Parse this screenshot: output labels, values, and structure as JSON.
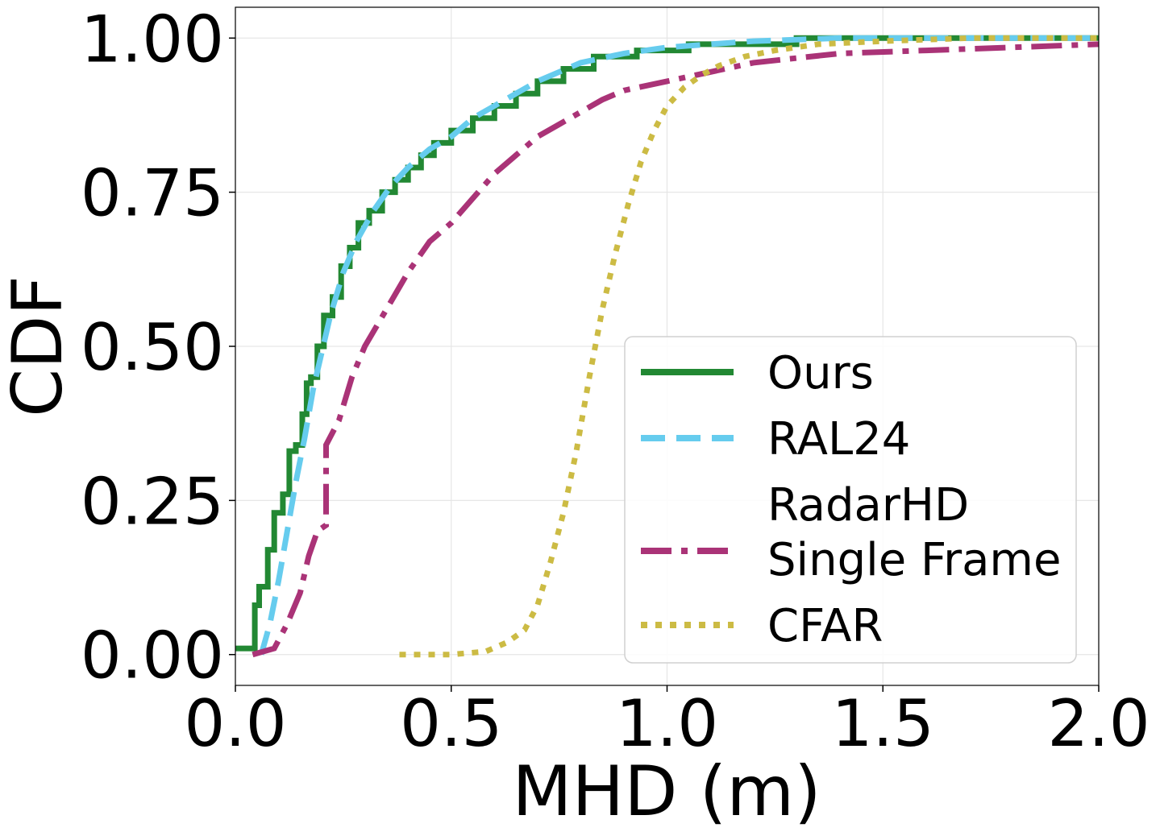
{
  "chart_data": {
    "type": "line",
    "title": "",
    "xlabel": "MHD (m)",
    "ylabel": "CDF",
    "xlim": [
      0.0,
      2.0
    ],
    "ylim": [
      -0.05,
      1.05
    ],
    "grid": true,
    "legend_position": "lower-right",
    "x_ticks": [
      0.0,
      0.5,
      1.0,
      1.5,
      2.0
    ],
    "x_tick_labels": [
      "0.0",
      "0.5",
      "1.0",
      "1.5",
      "2.0"
    ],
    "y_ticks": [
      0.0,
      0.25,
      0.5,
      0.75,
      1.0
    ],
    "y_tick_labels": [
      "0.00",
      "0.25",
      "0.50",
      "0.75",
      "1.00"
    ],
    "series": [
      {
        "name": "Ours",
        "legend_lines": [
          "Ours"
        ],
        "color": "#228833",
        "style": "solid",
        "step": true,
        "points": [
          [
            0.0,
            0.01
          ],
          [
            0.045,
            0.01
          ],
          [
            0.045,
            0.08
          ],
          [
            0.055,
            0.08
          ],
          [
            0.055,
            0.11
          ],
          [
            0.075,
            0.11
          ],
          [
            0.075,
            0.17
          ],
          [
            0.09,
            0.17
          ],
          [
            0.09,
            0.23
          ],
          [
            0.11,
            0.23
          ],
          [
            0.11,
            0.26
          ],
          [
            0.125,
            0.26
          ],
          [
            0.125,
            0.33
          ],
          [
            0.14,
            0.33
          ],
          [
            0.14,
            0.34
          ],
          [
            0.155,
            0.34
          ],
          [
            0.155,
            0.39
          ],
          [
            0.165,
            0.39
          ],
          [
            0.165,
            0.44
          ],
          [
            0.175,
            0.44
          ],
          [
            0.175,
            0.45
          ],
          [
            0.19,
            0.45
          ],
          [
            0.19,
            0.5
          ],
          [
            0.205,
            0.5
          ],
          [
            0.205,
            0.55
          ],
          [
            0.225,
            0.55
          ],
          [
            0.225,
            0.58
          ],
          [
            0.245,
            0.58
          ],
          [
            0.245,
            0.63
          ],
          [
            0.265,
            0.63
          ],
          [
            0.265,
            0.66
          ],
          [
            0.285,
            0.66
          ],
          [
            0.285,
            0.7
          ],
          [
            0.31,
            0.7
          ],
          [
            0.31,
            0.72
          ],
          [
            0.34,
            0.72
          ],
          [
            0.34,
            0.75
          ],
          [
            0.37,
            0.75
          ],
          [
            0.37,
            0.77
          ],
          [
            0.4,
            0.77
          ],
          [
            0.4,
            0.79
          ],
          [
            0.43,
            0.79
          ],
          [
            0.43,
            0.81
          ],
          [
            0.46,
            0.81
          ],
          [
            0.46,
            0.83
          ],
          [
            0.5,
            0.83
          ],
          [
            0.5,
            0.85
          ],
          [
            0.55,
            0.85
          ],
          [
            0.55,
            0.87
          ],
          [
            0.6,
            0.87
          ],
          [
            0.6,
            0.89
          ],
          [
            0.65,
            0.89
          ],
          [
            0.65,
            0.91
          ],
          [
            0.7,
            0.91
          ],
          [
            0.7,
            0.93
          ],
          [
            0.76,
            0.93
          ],
          [
            0.76,
            0.95
          ],
          [
            0.83,
            0.95
          ],
          [
            0.83,
            0.97
          ],
          [
            0.93,
            0.97
          ],
          [
            0.93,
            0.98
          ],
          [
            1.05,
            0.98
          ],
          [
            1.05,
            0.99
          ],
          [
            1.3,
            0.99
          ],
          [
            1.3,
            1.0
          ],
          [
            2.0,
            1.0
          ]
        ]
      },
      {
        "name": "RAL24",
        "legend_lines": [
          "RAL24"
        ],
        "color": "#66CCEE",
        "style": "dashed",
        "step": false,
        "points": [
          [
            0.06,
            0.0
          ],
          [
            0.08,
            0.05
          ],
          [
            0.1,
            0.12
          ],
          [
            0.12,
            0.2
          ],
          [
            0.14,
            0.28
          ],
          [
            0.16,
            0.35
          ],
          [
            0.18,
            0.43
          ],
          [
            0.2,
            0.49
          ],
          [
            0.22,
            0.55
          ],
          [
            0.25,
            0.62
          ],
          [
            0.28,
            0.67
          ],
          [
            0.32,
            0.72
          ],
          [
            0.36,
            0.76
          ],
          [
            0.4,
            0.79
          ],
          [
            0.45,
            0.82
          ],
          [
            0.5,
            0.84
          ],
          [
            0.55,
            0.87
          ],
          [
            0.6,
            0.89
          ],
          [
            0.65,
            0.91
          ],
          [
            0.7,
            0.93
          ],
          [
            0.8,
            0.96
          ],
          [
            0.9,
            0.975
          ],
          [
            1.0,
            0.985
          ],
          [
            1.1,
            0.99
          ],
          [
            1.2,
            0.995
          ],
          [
            1.4,
            1.0
          ],
          [
            2.0,
            1.0
          ]
        ]
      },
      {
        "name": "RadarHD Single Frame",
        "legend_lines": [
          "RadarHD",
          "Single Frame"
        ],
        "color": "#AA3377",
        "style": "dashdot",
        "step": false,
        "points": [
          [
            0.04,
            0.0
          ],
          [
            0.09,
            0.01
          ],
          [
            0.12,
            0.05
          ],
          [
            0.15,
            0.1
          ],
          [
            0.17,
            0.16
          ],
          [
            0.19,
            0.2
          ],
          [
            0.21,
            0.21
          ],
          [
            0.21,
            0.34
          ],
          [
            0.24,
            0.38
          ],
          [
            0.27,
            0.45
          ],
          [
            0.3,
            0.5
          ],
          [
            0.35,
            0.56
          ],
          [
            0.4,
            0.62
          ],
          [
            0.45,
            0.67
          ],
          [
            0.5,
            0.7
          ],
          [
            0.55,
            0.74
          ],
          [
            0.6,
            0.78
          ],
          [
            0.65,
            0.81
          ],
          [
            0.7,
            0.84
          ],
          [
            0.75,
            0.86
          ],
          [
            0.8,
            0.88
          ],
          [
            0.85,
            0.9
          ],
          [
            0.9,
            0.915
          ],
          [
            1.0,
            0.93
          ],
          [
            1.1,
            0.945
          ],
          [
            1.2,
            0.96
          ],
          [
            1.4,
            0.975
          ],
          [
            1.6,
            0.98
          ],
          [
            1.8,
            0.985
          ],
          [
            2.0,
            0.99
          ]
        ]
      },
      {
        "name": "CFAR",
        "legend_lines": [
          "CFAR"
        ],
        "color": "#CCBB44",
        "style": "dotted",
        "step": false,
        "points": [
          [
            0.38,
            0.0
          ],
          [
            0.5,
            0.0
          ],
          [
            0.58,
            0.005
          ],
          [
            0.63,
            0.02
          ],
          [
            0.67,
            0.04
          ],
          [
            0.7,
            0.08
          ],
          [
            0.73,
            0.15
          ],
          [
            0.76,
            0.23
          ],
          [
            0.79,
            0.33
          ],
          [
            0.82,
            0.45
          ],
          [
            0.85,
            0.56
          ],
          [
            0.88,
            0.65
          ],
          [
            0.91,
            0.73
          ],
          [
            0.94,
            0.8
          ],
          [
            0.97,
            0.85
          ],
          [
            1.0,
            0.89
          ],
          [
            1.04,
            0.92
          ],
          [
            1.08,
            0.94
          ],
          [
            1.12,
            0.955
          ],
          [
            1.18,
            0.97
          ],
          [
            1.25,
            0.98
          ],
          [
            1.35,
            0.99
          ],
          [
            1.5,
            0.995
          ],
          [
            1.7,
            1.0
          ],
          [
            2.0,
            1.0
          ]
        ]
      }
    ]
  }
}
